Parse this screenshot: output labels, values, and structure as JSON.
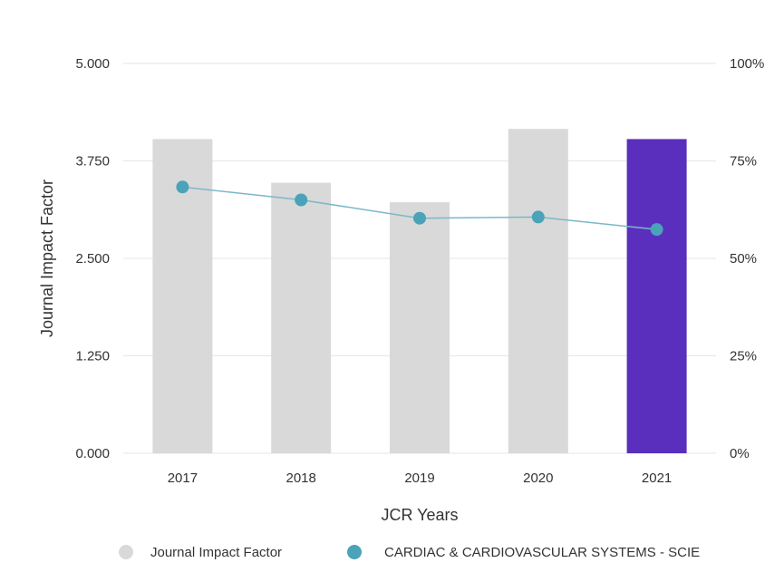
{
  "chart_data": {
    "type": "bar",
    "categories": [
      "2017",
      "2018",
      "2019",
      "2020",
      "2021"
    ],
    "xlabel": "JCR Years",
    "ylabel": "Journal Impact Factor",
    "ylim": [
      0,
      5
    ],
    "y_ticks": [
      "0.000",
      "1.250",
      "2.500",
      "3.750",
      "5.000"
    ],
    "y2lim": [
      0,
      100
    ],
    "y2_ticks": [
      "0%",
      "25%",
      "50%",
      "75%",
      "100%"
    ],
    "grid": true,
    "legend_position": "bottom",
    "series": [
      {
        "name": "Journal Impact Factor",
        "type": "bar",
        "axis": "left",
        "values": [
          4.03,
          3.47,
          3.22,
          4.16,
          4.03
        ],
        "color": "#d9d9d9",
        "highlight_index": 4,
        "highlight_color": "#5b2fbd"
      },
      {
        "name": "CARDIAC & CARDIOVASCULAR SYSTEMS - SCIE",
        "type": "line",
        "axis": "right",
        "values": [
          68.3,
          65.0,
          60.3,
          60.6,
          57.4
        ],
        "color": "#4aa3b8"
      }
    ]
  },
  "colors": {
    "grid": "#e6e6e6",
    "text": "#333333",
    "line": "#7ab8c8",
    "point": "#4aa3b8"
  }
}
